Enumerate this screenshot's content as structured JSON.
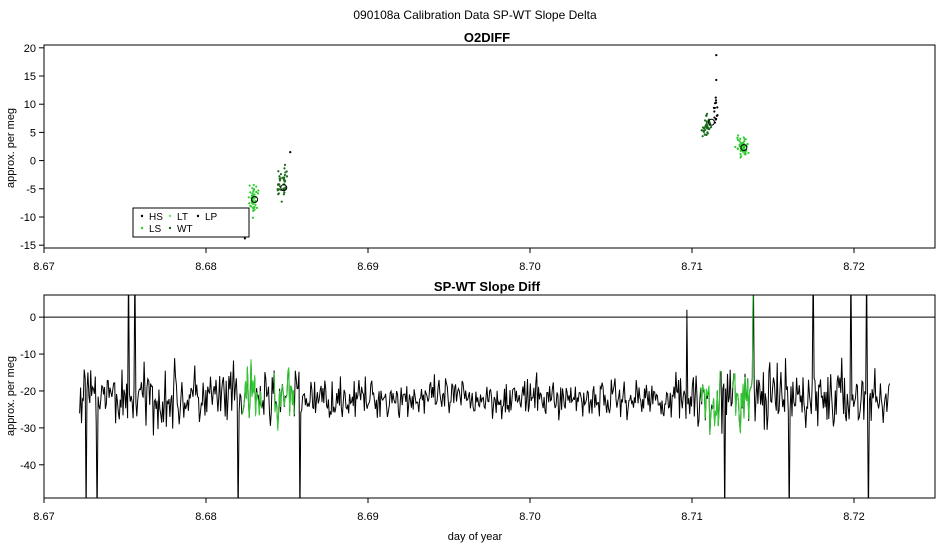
{
  "page_title": "090108a   Calibration Data SP-WT Slope Delta",
  "colors": {
    "black": "#000000",
    "dark_green": "#1a6b1a",
    "green": "#2ecc2e",
    "light_green": "#66ee66"
  },
  "chart_data": [
    {
      "type": "scatter",
      "title": "O2DIFF",
      "xlabel": "",
      "ylabel": "approx. per meg",
      "xlim": [
        8.67,
        8.725
      ],
      "ylim": [
        -15.5,
        20.5
      ],
      "x_ticks": [
        "8.67",
        "8.68",
        "8.69",
        "8.70",
        "8.71",
        "8.72"
      ],
      "y_ticks": [
        "20",
        "15",
        "10",
        "5",
        "0",
        "-5",
        "-10",
        "-15"
      ],
      "grid": false,
      "legend_position": "bottom-left",
      "legend": [
        {
          "label": "HS",
          "color": "#000000"
        },
        {
          "label": "LS",
          "color": "#2ecc2e"
        },
        {
          "label": "LT",
          "color": "#66ee66"
        },
        {
          "label": "WT",
          "color": "#1a6b1a"
        },
        {
          "label": "LP",
          "color": "#000000"
        }
      ],
      "clusters": [
        {
          "series": "LS",
          "x_center": 8.6829,
          "x_spread": 0.0004,
          "y_center": -7,
          "y_spread": 4,
          "n": 45
        },
        {
          "series": "WT",
          "x_center": 8.6847,
          "x_spread": 0.0005,
          "y_center": -4,
          "y_spread": 4,
          "n": 45
        },
        {
          "series": "WT",
          "x_center": 8.7109,
          "x_spread": 0.0004,
          "y_center": 6,
          "y_spread": 3,
          "n": 40
        },
        {
          "series": "HS",
          "x_center": 8.7115,
          "x_spread": 0.0002,
          "y_center": 9,
          "y_spread": 4,
          "n": 14
        },
        {
          "series": "LS",
          "x_center": 8.7131,
          "x_spread": 0.0005,
          "y_center": 2.5,
          "y_spread": 2.5,
          "n": 50
        }
      ],
      "outliers": [
        {
          "x": 8.7115,
          "y": 18.7
        },
        {
          "x": 8.7115,
          "y": 14.3
        },
        {
          "x": 8.6852,
          "y": 1.5
        },
        {
          "x": 8.6824,
          "y": -13.8
        }
      ],
      "means": [
        {
          "x": 8.683,
          "y": -6.9
        },
        {
          "x": 8.6848,
          "y": -4.8
        },
        {
          "x": 8.7112,
          "y": 6.8
        },
        {
          "x": 8.7132,
          "y": 2.3
        }
      ]
    },
    {
      "type": "line",
      "title": "SP-WT Slope Diff",
      "xlabel": "day of year",
      "ylabel": "approx. per meg",
      "xlim": [
        8.67,
        8.725
      ],
      "ylim": [
        -49,
        6
      ],
      "x_ticks": [
        "8.67",
        "8.68",
        "8.69",
        "8.70",
        "8.71",
        "8.72"
      ],
      "y_ticks": [
        "0",
        "-10",
        "-20",
        "-30",
        "-40"
      ],
      "reference_line": 0,
      "series": [
        {
          "color": "#000000",
          "x_start": 8.6722,
          "x_end": 8.7222,
          "n": 880,
          "mean": -22
        }
      ],
      "highlight_segments": [
        {
          "x_start": 8.6822,
          "x_end": 8.6835
        },
        {
          "x_start": 8.6842,
          "x_end": 8.6855
        },
        {
          "x_start": 8.7105,
          "x_end": 8.7118
        },
        {
          "x_start": 8.7125,
          "x_end": 8.7138
        }
      ],
      "spikes": [
        {
          "x": 8.6726,
          "y": -55
        },
        {
          "x": 8.6733,
          "y": -55
        },
        {
          "x": 8.6752,
          "y": 15
        },
        {
          "x": 8.6756,
          "y": 15
        },
        {
          "x": 8.682,
          "y": -55
        },
        {
          "x": 8.6858,
          "y": -55
        },
        {
          "x": 8.7097,
          "y": 2
        },
        {
          "x": 8.712,
          "y": -55
        },
        {
          "x": 8.7138,
          "y": 15
        },
        {
          "x": 8.716,
          "y": -55
        },
        {
          "x": 8.7175,
          "y": 15
        },
        {
          "x": 8.7198,
          "y": 15
        },
        {
          "x": 8.7208,
          "y": 15
        },
        {
          "x": 8.7209,
          "y": -55
        }
      ]
    }
  ]
}
